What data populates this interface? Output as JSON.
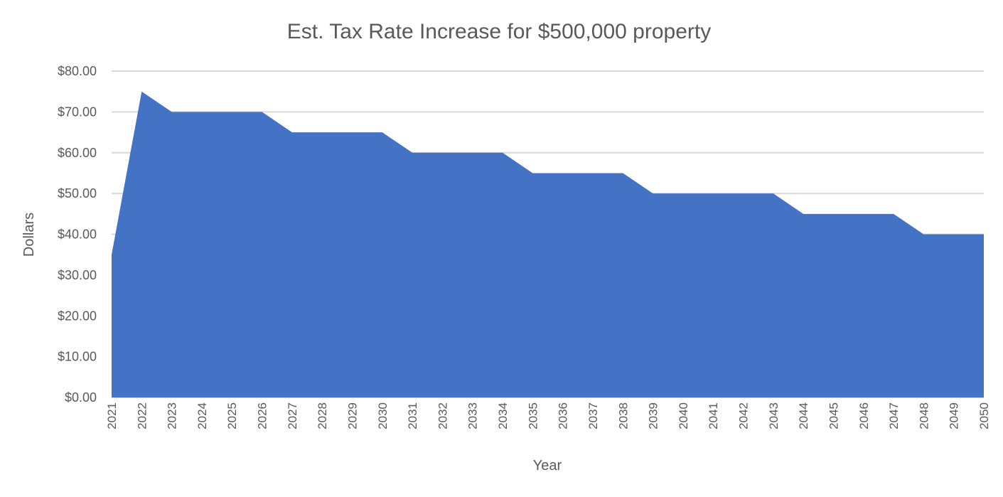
{
  "chart_data": {
    "type": "area",
    "title": "Est. Tax Rate Increase for $500,000 property",
    "xlabel": "Year",
    "ylabel": "Dollars",
    "categories": [
      "2021",
      "2022",
      "2023",
      "2024",
      "2025",
      "2026",
      "2027",
      "2028",
      "2029",
      "2030",
      "2031",
      "2032",
      "2033",
      "2034",
      "2035",
      "2036",
      "2037",
      "2038",
      "2039",
      "2040",
      "2041",
      "2042",
      "2043",
      "2044",
      "2045",
      "2046",
      "2047",
      "2048",
      "2049",
      "2050"
    ],
    "series": [
      {
        "values": [
          35,
          75,
          70,
          70,
          70,
          70,
          65,
          65,
          65,
          65,
          60,
          60,
          60,
          60,
          55,
          55,
          55,
          55,
          50,
          50,
          50,
          50,
          50,
          45,
          45,
          45,
          45,
          40,
          40,
          40
        ]
      }
    ],
    "ylim": [
      0,
      80
    ],
    "yticks": [
      0,
      10,
      20,
      30,
      40,
      50,
      60,
      70,
      80
    ],
    "ytick_labels": [
      "$0.00",
      "$10.00",
      "$20.00",
      "$30.00",
      "$40.00",
      "$50.00",
      "$60.00",
      "$70.00",
      "$80.00"
    ],
    "grid": true,
    "legend": "none",
    "colors": {
      "fill": "#4472C4",
      "grid": "#D9D9D9",
      "text": "#595959"
    }
  }
}
